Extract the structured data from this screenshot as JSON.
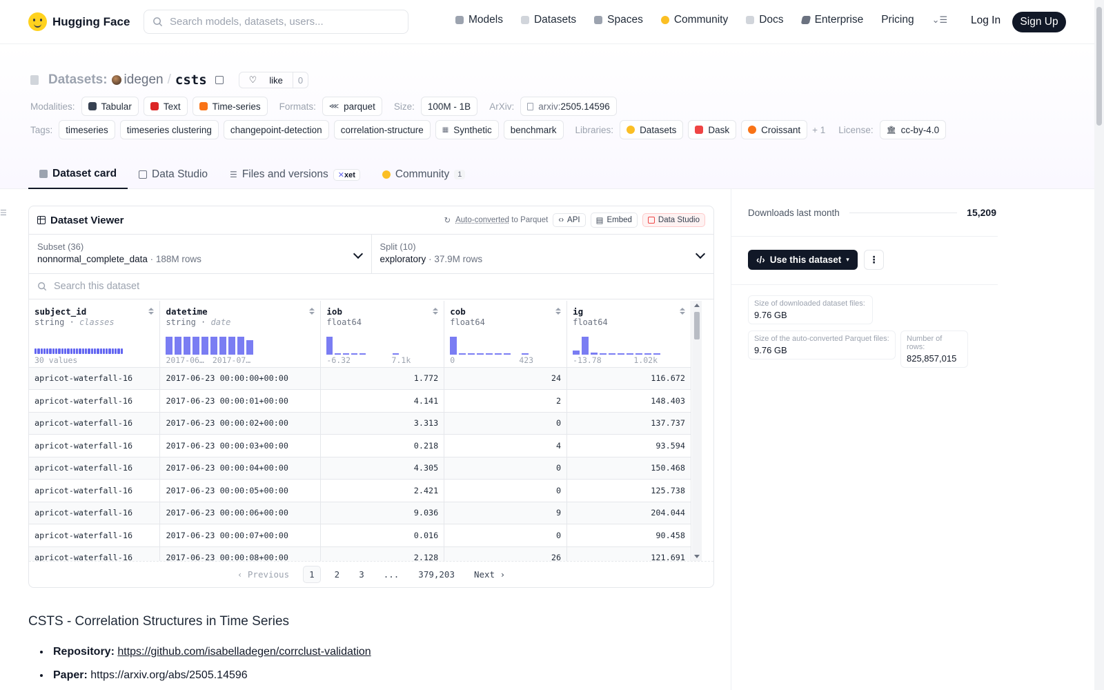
{
  "nav": {
    "logo_text": "Hugging Face",
    "search_placeholder": "Search models, datasets, users...",
    "links": [
      {
        "label": "Models",
        "color": "#9ca3af"
      },
      {
        "label": "Datasets",
        "color": "#d1d5db"
      },
      {
        "label": "Spaces",
        "color": "#9ca3af"
      },
      {
        "label": "Community",
        "color": "#fbbf24"
      },
      {
        "label": "Docs",
        "color": "#9ca3af"
      },
      {
        "label": "Enterprise",
        "color": "#6b7280"
      },
      {
        "label": "Pricing",
        "color": ""
      }
    ],
    "login": "Log In",
    "signup": "Sign Up"
  },
  "header": {
    "category": "Datasets:",
    "owner": "idegen",
    "slash": "/",
    "name": "csts",
    "like_label": "like",
    "like_count": "0",
    "modalities_label": "Modalities:",
    "modalities": [
      {
        "label": "Tabular",
        "color": "#374151"
      },
      {
        "label": "Text",
        "color": "#dc2626"
      },
      {
        "label": "Time-series",
        "color": "#f97316"
      }
    ],
    "formats_label": "Formats:",
    "formats": [
      "parquet"
    ],
    "size_label": "Size:",
    "size": "100M - 1B",
    "arxiv_label": "ArXiv:",
    "arxiv_prefix": "arxiv:",
    "arxiv_id": "2505.14596",
    "tags_label": "Tags:",
    "tags": [
      "timeseries",
      "timeseries clustering",
      "changepoint-detection",
      "correlation-structure",
      "Synthetic",
      "benchmark"
    ],
    "libraries_label": "Libraries:",
    "libraries": [
      {
        "label": "Datasets",
        "color": "#fbbf24"
      },
      {
        "label": "Dask",
        "color": "#ef4444"
      },
      {
        "label": "Croissant",
        "color": "#f97316"
      }
    ],
    "libraries_more": "+ 1",
    "license_label": "License:",
    "license": "cc-by-4.0",
    "tabs": [
      {
        "label": "Dataset card",
        "active": true
      },
      {
        "label": "Data Studio"
      },
      {
        "label": "Files and versions",
        "badge": "xet"
      },
      {
        "label": "Community",
        "count": "1"
      }
    ]
  },
  "viewer": {
    "title": "Dataset Viewer",
    "auto_converted": "Auto-converted",
    "to_parquet": "to Parquet",
    "api": "API",
    "embed": "Embed",
    "data_studio": "Data Studio",
    "subset_label": "Subset (36)",
    "subset_value": "nonnormal_complete_data",
    "subset_rows": "188M rows",
    "split_label": "Split (10)",
    "split_value": "exploratory",
    "split_rows": "37.9M rows",
    "search_placeholder": "Search this dataset",
    "columns": [
      {
        "name": "subject_id",
        "type": "string",
        "sub": "classes",
        "range": [
          "30 values"
        ]
      },
      {
        "name": "datetime",
        "type": "string",
        "sub": "date",
        "range": [
          "2017-06…",
          "2017-07…"
        ],
        "hist": [
          0.9,
          0.9,
          0.9,
          0.9,
          0.9,
          0.9,
          0.9,
          0.9,
          0.9,
          0.75
        ]
      },
      {
        "name": "iob",
        "type": "float64",
        "range": [
          "-6.32",
          "7.1k"
        ],
        "hist": [
          0.9,
          0.05,
          0.05,
          0.05,
          0.05,
          0,
          0,
          0,
          0.05
        ]
      },
      {
        "name": "cob",
        "type": "float64",
        "range": [
          "0",
          "423"
        ],
        "hist": [
          0.9,
          0.05,
          0.05,
          0.05,
          0.05,
          0.05,
          0.05,
          0,
          0.05
        ]
      },
      {
        "name": "ig",
        "type": "float64",
        "range": [
          "-13.78",
          "1.02k"
        ],
        "hist": [
          0.18,
          0.9,
          0.1,
          0.05,
          0.05,
          0.05,
          0.05,
          0.05,
          0.05,
          0.05
        ]
      }
    ],
    "rows": [
      [
        "apricot-waterfall-16",
        "2017-06-23 00:00:00+00:00",
        "1.772",
        "24",
        "116.672"
      ],
      [
        "apricot-waterfall-16",
        "2017-06-23 00:00:01+00:00",
        "4.141",
        "2",
        "148.403"
      ],
      [
        "apricot-waterfall-16",
        "2017-06-23 00:00:02+00:00",
        "3.313",
        "0",
        "137.737"
      ],
      [
        "apricot-waterfall-16",
        "2017-06-23 00:00:03+00:00",
        "0.218",
        "4",
        "93.594"
      ],
      [
        "apricot-waterfall-16",
        "2017-06-23 00:00:04+00:00",
        "4.305",
        "0",
        "150.468"
      ],
      [
        "apricot-waterfall-16",
        "2017-06-23 00:00:05+00:00",
        "2.421",
        "0",
        "125.738"
      ],
      [
        "apricot-waterfall-16",
        "2017-06-23 00:00:06+00:00",
        "9.036",
        "9",
        "204.044"
      ],
      [
        "apricot-waterfall-16",
        "2017-06-23 00:00:07+00:00",
        "0.016",
        "0",
        "90.458"
      ],
      [
        "apricot-waterfall-16",
        "2017-06-23 00:00:08+00:00",
        "2.128",
        "26",
        "121.691"
      ]
    ],
    "pager": {
      "prev": "Previous",
      "pages": [
        "1",
        "2",
        "3",
        "...",
        "379,203"
      ],
      "next": "Next"
    }
  },
  "readme": {
    "title": "CSTS - Correlation Structures in Time Series",
    "items": [
      {
        "key": "Repository:",
        "value": "https://github.com/isabelladegen/corrclust-validation"
      },
      {
        "key": "Paper:",
        "value": "https://arxiv.org/abs/2505.14596"
      }
    ]
  },
  "sidebar": {
    "downloads_label": "Downloads last month",
    "downloads": "15,209",
    "use_button": "Use this dataset",
    "stats": [
      {
        "key": "Size of downloaded dataset files:",
        "value": "9.76 GB"
      },
      {
        "key": "Size of the auto-converted Parquet files:",
        "value": "9.76 GB"
      },
      {
        "key": "Number of rows:",
        "value": "825,857,015"
      }
    ]
  }
}
